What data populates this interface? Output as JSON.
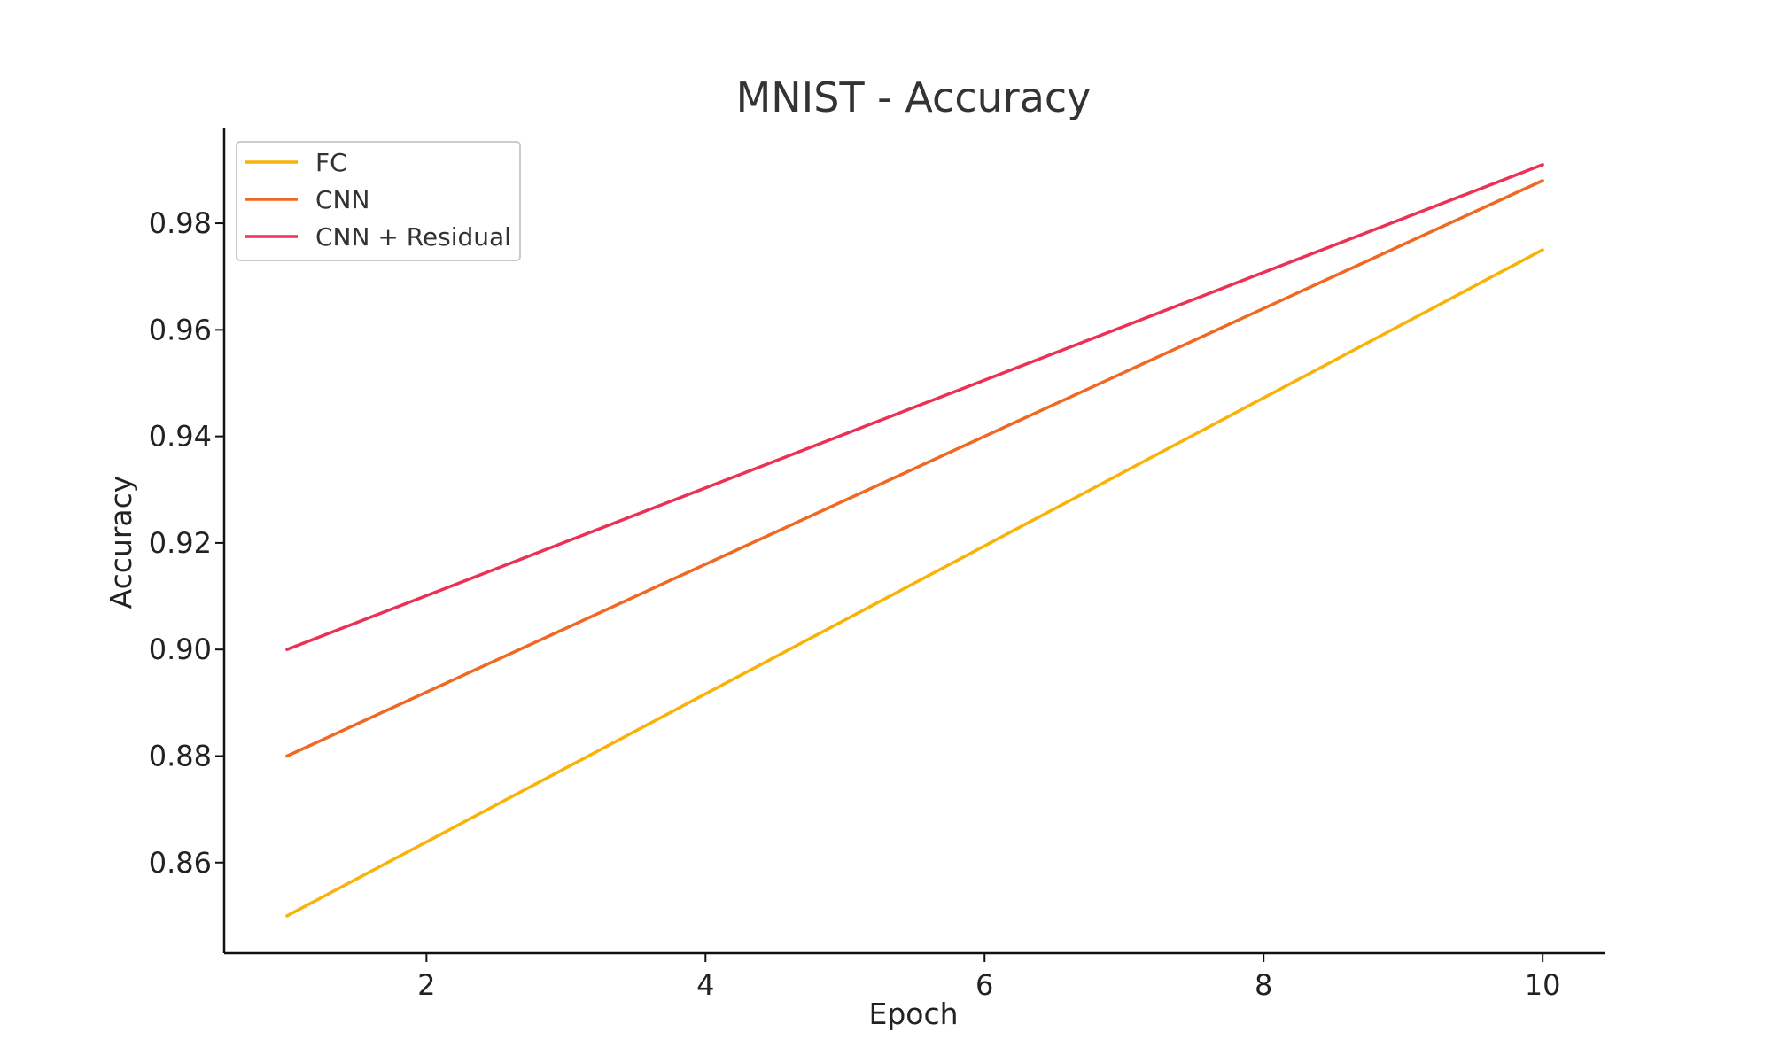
{
  "chart_data": {
    "type": "line",
    "title": "MNIST - Accuracy",
    "xlabel": "Epoch",
    "ylabel": "Accuracy",
    "x": [
      1,
      10
    ],
    "series": [
      {
        "name": "FC",
        "color": "#F9B208",
        "values": [
          0.85,
          0.975
        ]
      },
      {
        "name": "CNN",
        "color": "#F06923",
        "values": [
          0.88,
          0.988
        ]
      },
      {
        "name": "CNN + Residual",
        "color": "#EB3156",
        "values": [
          0.9,
          0.991
        ]
      }
    ],
    "xlim": [
      0.55,
      10.45
    ],
    "ylim": [
      0.843,
      0.9978
    ],
    "xticks": [
      2,
      4,
      6,
      8,
      10
    ],
    "xtick_labels": [
      "2",
      "4",
      "6",
      "8",
      "10"
    ],
    "yticks": [
      0.86,
      0.88,
      0.9,
      0.92,
      0.94,
      0.96,
      0.98
    ],
    "ytick_labels": [
      "0.86",
      "0.88",
      "0.90",
      "0.92",
      "0.94",
      "0.96",
      "0.98"
    ],
    "grid": false,
    "legend_position": "top-left"
  }
}
